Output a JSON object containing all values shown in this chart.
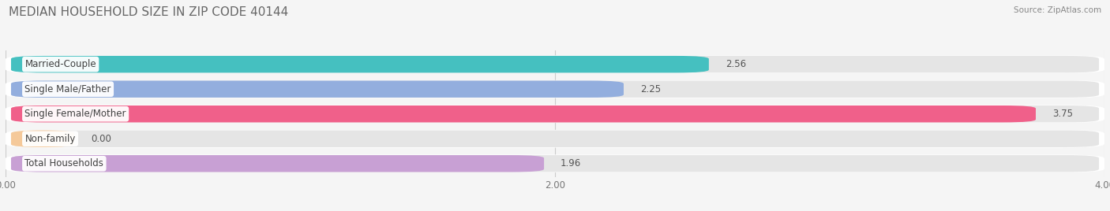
{
  "title": "MEDIAN HOUSEHOLD SIZE IN ZIP CODE 40144",
  "source": "Source: ZipAtlas.com",
  "categories": [
    "Married-Couple",
    "Single Male/Father",
    "Single Female/Mother",
    "Non-family",
    "Total Households"
  ],
  "values": [
    2.56,
    2.25,
    3.75,
    0.0,
    1.96
  ],
  "bar_colors": [
    "#45c0c0",
    "#93aede",
    "#f0608a",
    "#f5c99a",
    "#c8a0d4"
  ],
  "xlim": [
    0,
    4.0
  ],
  "xticks": [
    0.0,
    2.0,
    4.0
  ],
  "xtick_labels": [
    "0.00",
    "2.00",
    "4.00"
  ],
  "background_color": "#f5f5f5",
  "bar_bg_color": "#e5e5e5",
  "row_bg_color": "#ffffff",
  "title_fontsize": 11,
  "label_fontsize": 8.5,
  "value_fontsize": 8.5,
  "source_fontsize": 7.5,
  "bar_height": 0.72,
  "n_bars": 5
}
